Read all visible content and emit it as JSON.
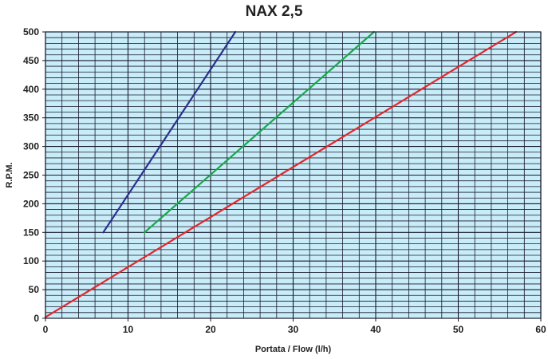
{
  "chart_data": {
    "type": "line",
    "title": "NAX 2,5",
    "xlabel": "Portata / Flow (l/h)",
    "ylabel": "R.P.M.",
    "xlim": [
      0,
      60
    ],
    "ylim": [
      0,
      500
    ],
    "xticks": [
      "0",
      "10",
      "20",
      "30",
      "40",
      "50",
      "60"
    ],
    "yticks": [
      "0",
      "50",
      "100",
      "150",
      "200",
      "250",
      "300",
      "350",
      "400",
      "450",
      "500"
    ],
    "grid": true,
    "background_color": "#c8ecf8",
    "grid_color": "#1a1a2e",
    "series": [
      {
        "color": "#2b2f8f",
        "points": [
          [
            7,
            150
          ],
          [
            23,
            500
          ]
        ]
      },
      {
        "color": "#1aa64b",
        "points": [
          [
            12,
            150
          ],
          [
            39.8,
            500
          ]
        ]
      },
      {
        "color": "#e3262d",
        "points": [
          [
            0,
            2
          ],
          [
            57,
            500
          ]
        ]
      }
    ]
  }
}
